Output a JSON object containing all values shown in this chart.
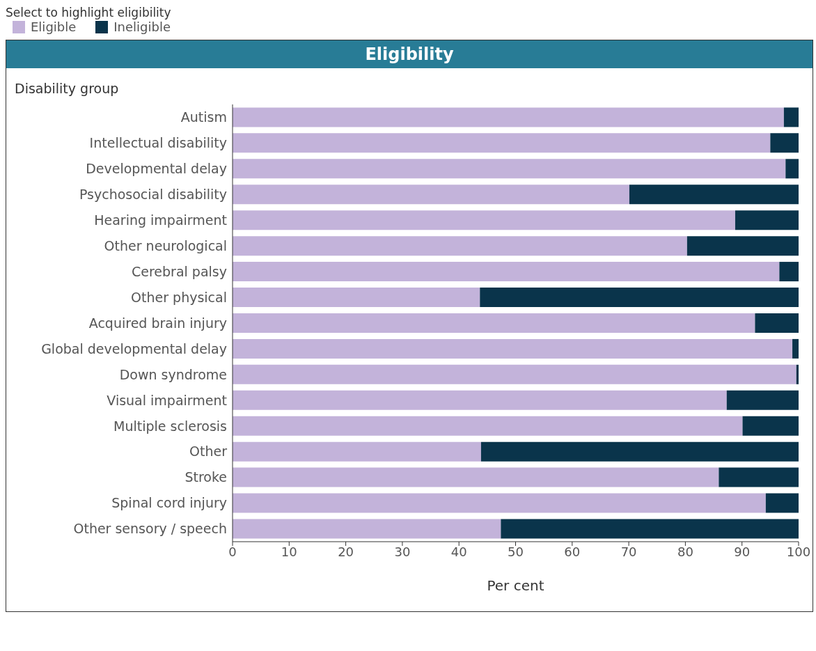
{
  "chart_data": {
    "type": "bar",
    "orientation": "horizontal",
    "stacked": true,
    "title": "Eligibility",
    "legend_title": "Select to highlight eligibility",
    "ylabel": "Disability group",
    "xlabel": "Per cent",
    "categories": [
      "Autism",
      "Intellectual disability",
      "Developmental delay",
      "Psychosocial disability",
      "Hearing impairment",
      "Other neurological",
      "Cerebral palsy",
      "Other physical",
      "Acquired brain injury",
      "Global developmental delay",
      "Down syndrome",
      "Visual impairment",
      "Multiple sclerosis",
      "Other",
      "Stroke",
      "Spinal cord injury",
      "Other sensory / speech"
    ],
    "series": [
      {
        "name": "Eligible",
        "color": "#c3b3da",
        "values": [
          97.4,
          95.0,
          97.7,
          70.1,
          88.8,
          80.3,
          96.6,
          43.7,
          92.3,
          98.9,
          99.6,
          87.3,
          90.1,
          43.9,
          85.9,
          94.2,
          47.4
        ]
      },
      {
        "name": "Ineligible",
        "color": "#0a344b",
        "values": [
          2.6,
          5.0,
          2.3,
          29.9,
          11.2,
          19.7,
          3.4,
          56.3,
          7.7,
          1.1,
          0.4,
          12.7,
          9.9,
          56.1,
          14.1,
          5.8,
          52.6
        ]
      }
    ],
    "xlim": [
      0,
      100
    ],
    "xticks": [
      0,
      10,
      20,
      30,
      40,
      50,
      60,
      70,
      80,
      90,
      100
    ],
    "grid": false,
    "legend": "top left"
  }
}
